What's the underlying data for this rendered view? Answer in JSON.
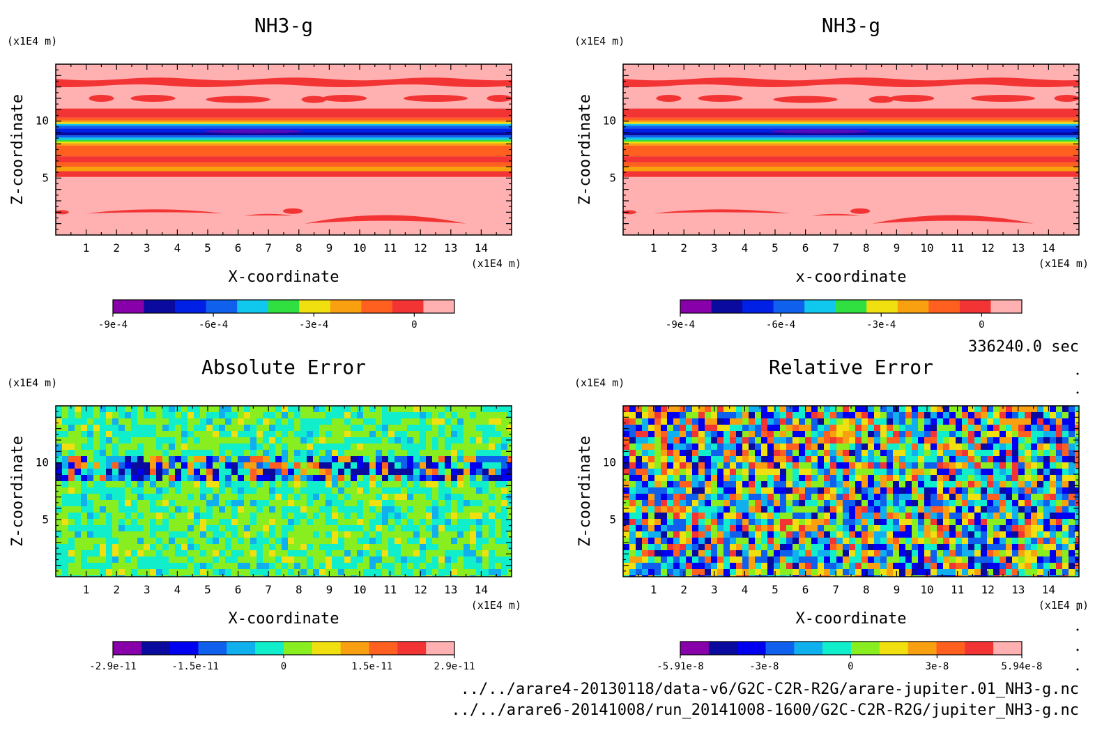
{
  "chart_data": [
    {
      "type": "heatmap",
      "title": "NH3-g",
      "xlabel": "X-coordinate",
      "ylabel": "Z-coordinate",
      "x_unit": "(x1E4 m)",
      "y_unit": "(x1E4 m)",
      "xlim": [
        0,
        15
      ],
      "ylim": [
        0,
        15
      ],
      "xticks": [
        "1",
        "2",
        "3",
        "4",
        "5",
        "6",
        "7",
        "8",
        "9",
        "10",
        "11",
        "12",
        "13",
        "14"
      ],
      "yticks": [
        "5",
        "10"
      ],
      "pattern": "layered",
      "colorbar": {
        "colors": [
          "#8800aa",
          "#0a0a9e",
          "#0020e6",
          "#1060ee",
          "#10c8ee",
          "#30e040",
          "#f0e010",
          "#f8a010",
          "#ff6020",
          "#f23434",
          "#ffb0b0"
        ],
        "tick_labels": [
          "-9e-4",
          "-6e-4",
          "-3e-4",
          "0"
        ],
        "range": [
          -0.0009,
          0.00012
        ]
      }
    },
    {
      "type": "heatmap",
      "title": "NH3-g",
      "xlabel": "x-coordinate",
      "ylabel": "Z-coordinate",
      "x_unit": "(x1E4 m)",
      "y_unit": "(x1E4 m)",
      "xlim": [
        0,
        15
      ],
      "ylim": [
        0,
        15
      ],
      "xticks": [
        "1",
        "2",
        "3",
        "4",
        "5",
        "6",
        "7",
        "8",
        "9",
        "10",
        "11",
        "12",
        "13",
        "14"
      ],
      "yticks": [
        "5",
        "10"
      ],
      "pattern": "layered",
      "colorbar": {
        "colors": [
          "#8800aa",
          "#0a0a9e",
          "#0020e6",
          "#1060ee",
          "#10c8ee",
          "#30e040",
          "#f0e010",
          "#f8a010",
          "#ff6020",
          "#f23434",
          "#ffb0b0"
        ],
        "tick_labels": [
          "-9e-4",
          "-6e-4",
          "-3e-4",
          "0"
        ],
        "range": [
          -0.0009,
          0.00012
        ]
      }
    },
    {
      "type": "heatmap",
      "title": "Absolute Error",
      "xlabel": "X-coordinate",
      "ylabel": "Z-coordinate",
      "x_unit": "(x1E4 m)",
      "y_unit": "(x1E4 m)",
      "xlim": [
        0,
        15
      ],
      "ylim": [
        0,
        15
      ],
      "xticks": [
        "1",
        "2",
        "3",
        "4",
        "5",
        "6",
        "7",
        "8",
        "9",
        "10",
        "11",
        "12",
        "13",
        "14"
      ],
      "yticks": [
        "5",
        "10"
      ],
      "pattern": "noise-band",
      "colorbar": {
        "colors": [
          "#8800aa",
          "#0a0a9e",
          "#0000f0",
          "#1060ee",
          "#10b0ee",
          "#10eecc",
          "#88ee20",
          "#f0e010",
          "#f8a010",
          "#ff6020",
          "#f23434",
          "#ffb0b0"
        ],
        "tick_labels": [
          "-2.9e-11",
          "-1.5e-11",
          "0",
          "1.5e-11",
          "2.9e-11"
        ],
        "range": [
          -2.9e-11,
          2.9e-11
        ]
      }
    },
    {
      "type": "heatmap",
      "title": "Relative Error",
      "xlabel": "X-coordinate",
      "ylabel": "Z-coordinate",
      "x_unit": "(x1E4 m)",
      "y_unit": "(x1E4 m)",
      "xlim": [
        0,
        15
      ],
      "ylim": [
        0,
        15
      ],
      "xticks": [
        "1",
        "2",
        "3",
        "4",
        "5",
        "6",
        "7",
        "8",
        "9",
        "10",
        "11",
        "12",
        "13",
        "14"
      ],
      "yticks": [
        "5",
        "10"
      ],
      "pattern": "noise",
      "colorbar": {
        "colors": [
          "#8800aa",
          "#0a0a9e",
          "#0000f0",
          "#1060ee",
          "#10b0ee",
          "#10eecc",
          "#88ee20",
          "#f0e010",
          "#f8a010",
          "#ff6020",
          "#f23434",
          "#ffb0b0"
        ],
        "tick_labels": [
          "-5.91e-8",
          "-3e-8",
          "0",
          "3e-8",
          "5.94e-8"
        ],
        "range": [
          -5.91e-08,
          5.94e-08
        ]
      }
    }
  ],
  "time_label": "336240.0 sec",
  "files": [
    "../../arare4-20130118/data-v6/G2C-C2R-R2G/arare-jupiter.01_NH3-g.nc",
    "../../arare6-20141008/run_20141008-1600/G2C-C2R-R2G/jupiter_NH3-g.nc"
  ]
}
